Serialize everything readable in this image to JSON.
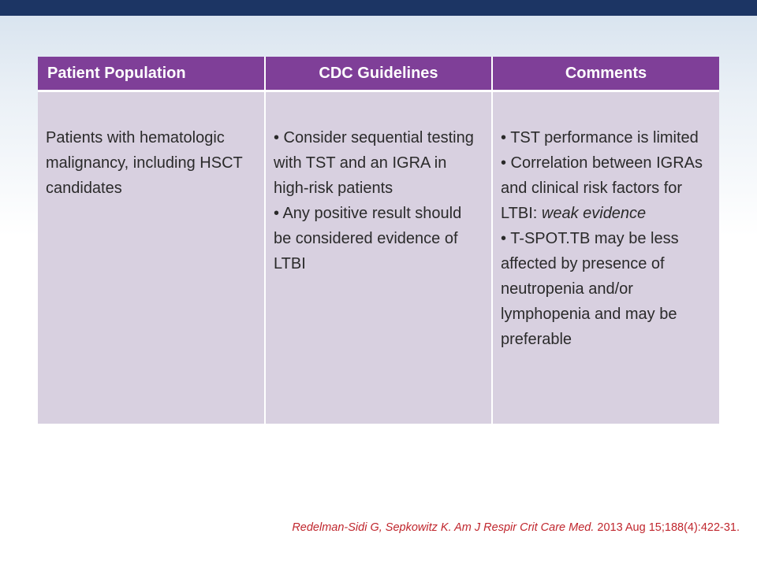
{
  "table": {
    "headers": [
      "Patient Population",
      "CDC Guidelines",
      "Comments"
    ],
    "row": {
      "population": "Patients with hematologic malignancy, including HSCT candidates",
      "guidelines": [
        "• Consider sequential testing with TST and an IGRA in high-risk patients",
        "• Any positive result should be considered evidence of LTBI"
      ],
      "comments": {
        "item1": "• TST performance is limited",
        "item2_text": "• Correlation between IGRAs and clinical risk factors for LTBI: ",
        "item2_italic": "weak evidence",
        "item3": "• T-SPOT.TB may be less affected by presence of neutropenia and/or lymphopenia and may be preferable"
      }
    }
  },
  "citation": {
    "authors": "Redelman-Sidi G, Sepkowitz K. ",
    "journal": "Am J Respir Crit Care Med.",
    "details": " 2013 Aug 15;188(4):422-31."
  },
  "colors": {
    "header_bar": "#1c3564",
    "table_header": "#7f3f98",
    "table_body": "#d8d0e0",
    "citation": "#c0262d"
  }
}
